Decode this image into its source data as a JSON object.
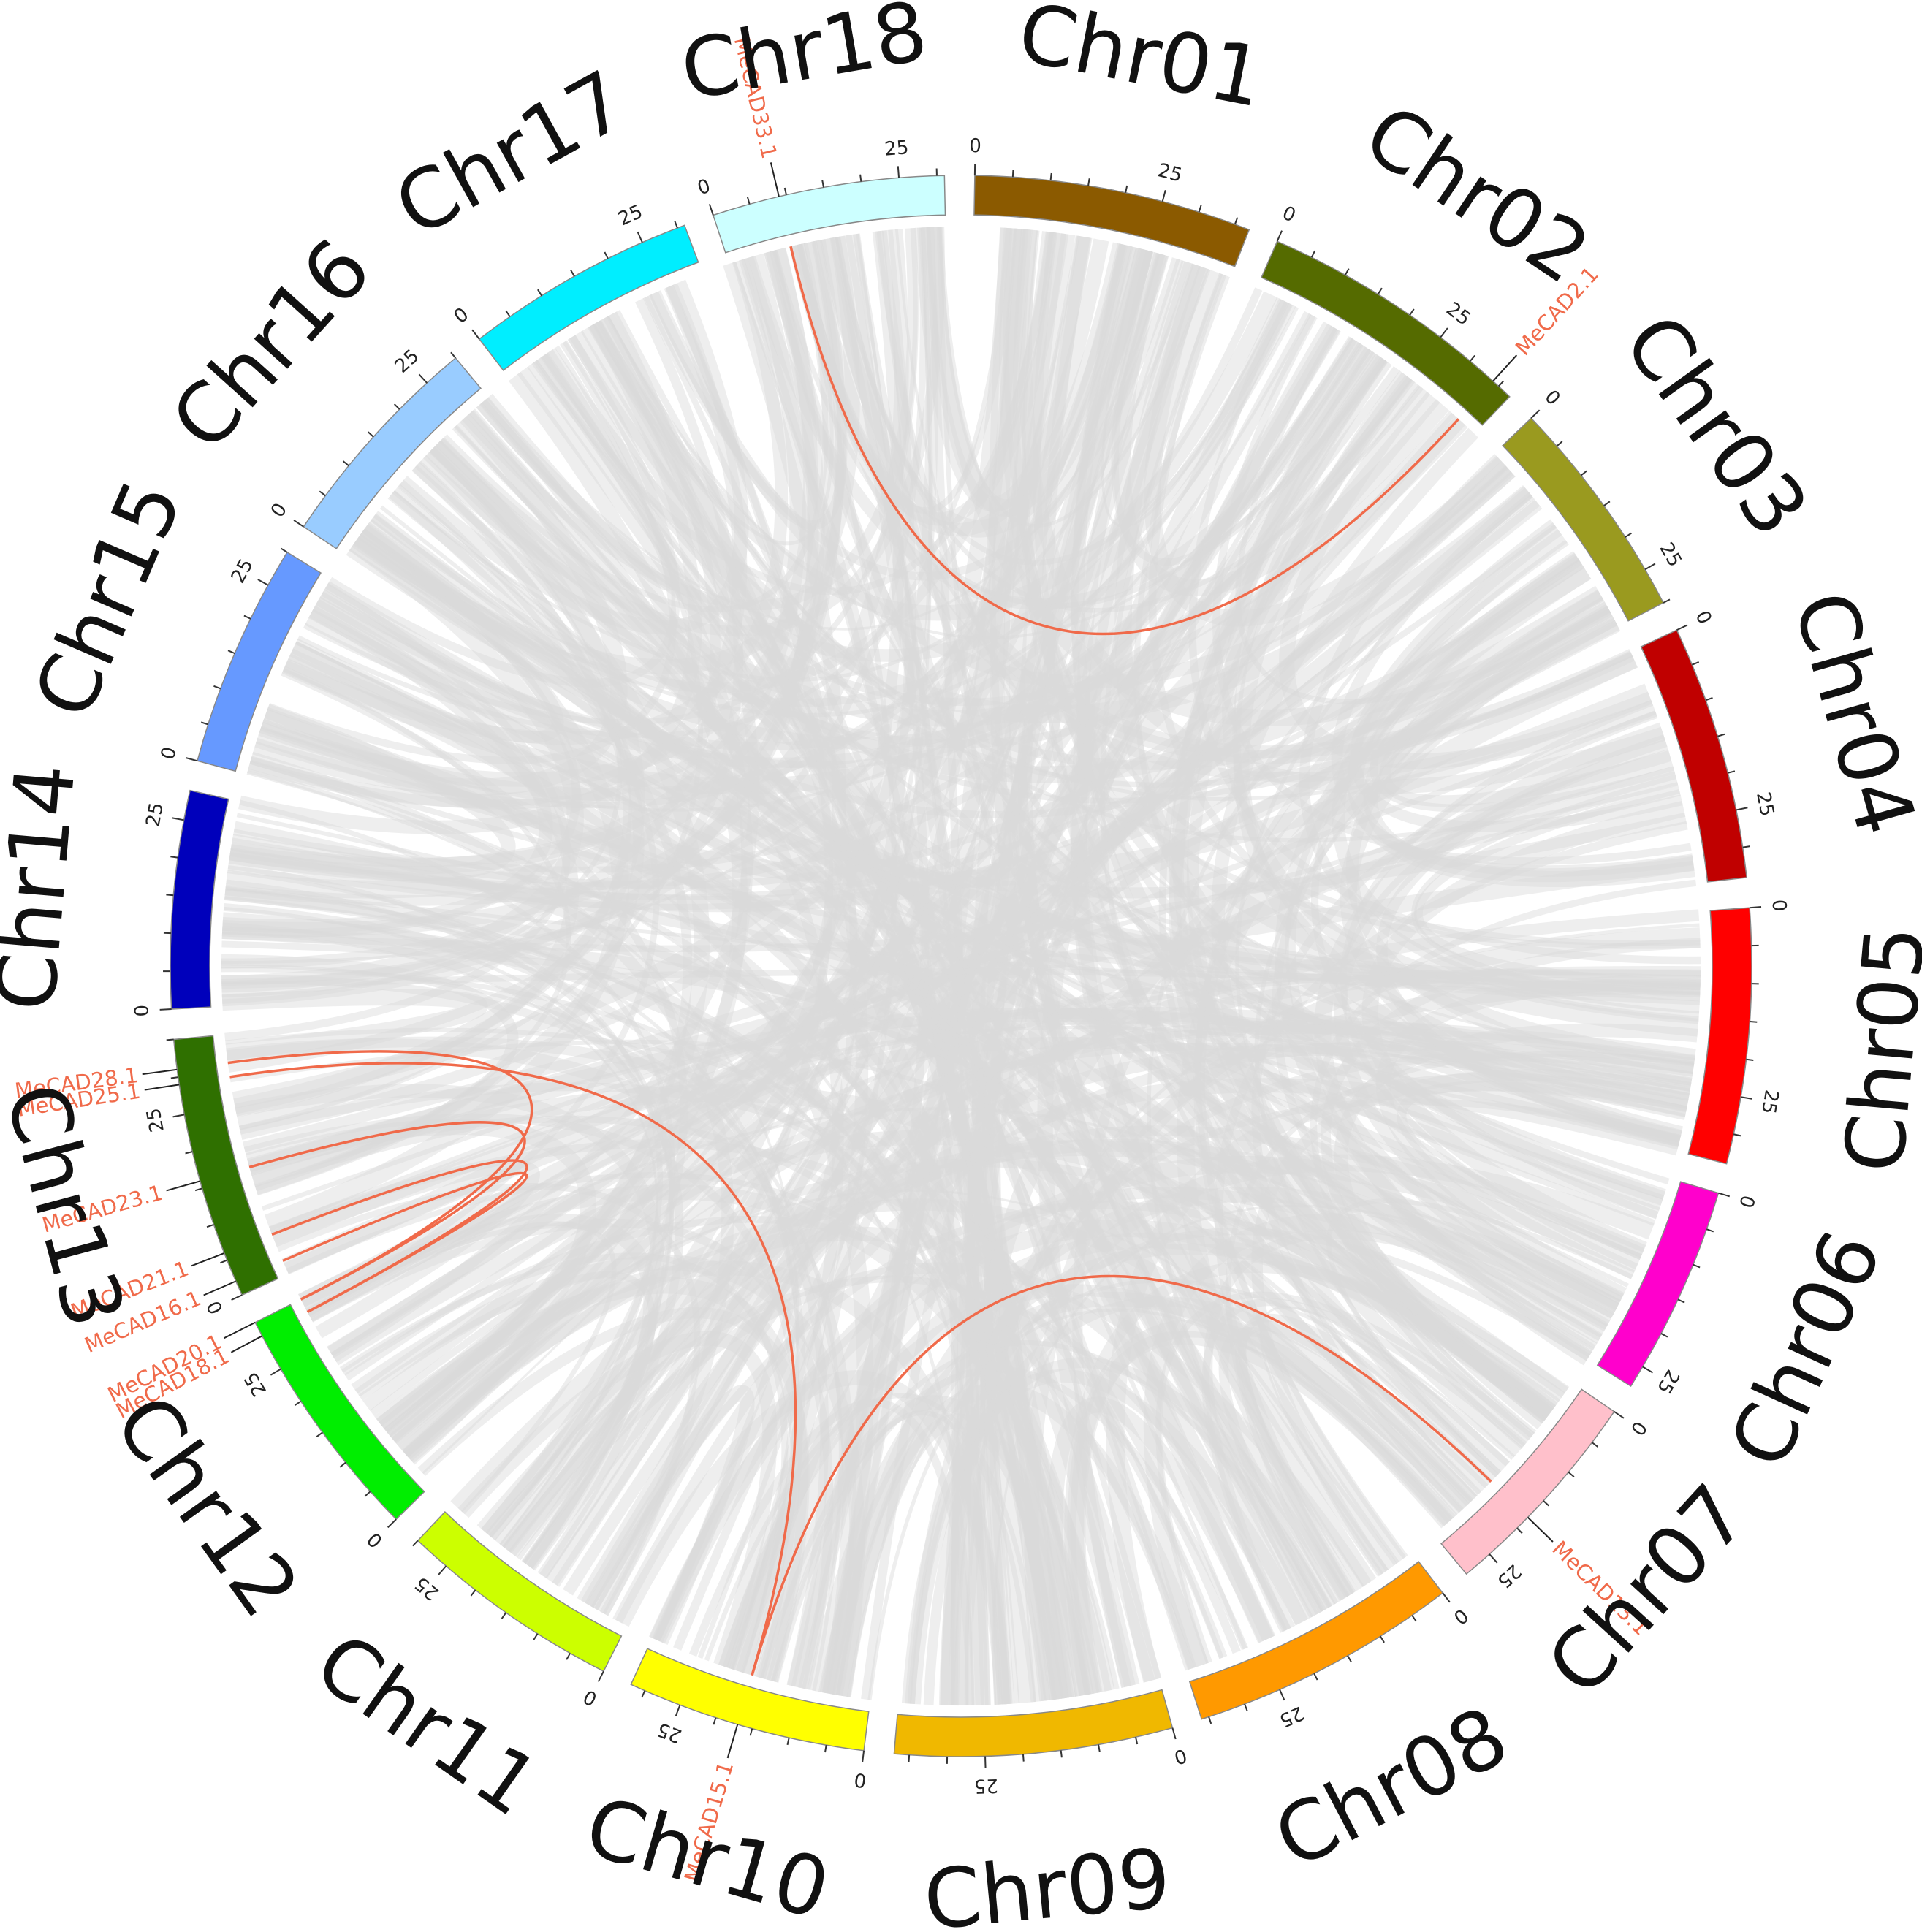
{
  "chart_data": {
    "type": "circos",
    "chromosomes": [
      {
        "name": "Chr01",
        "length": 37,
        "color": "#8B5A00"
      },
      {
        "name": "Chr02",
        "length": 37,
        "color": "#556B00"
      },
      {
        "name": "Chr03",
        "length": 30,
        "color": "#9A9A1F"
      },
      {
        "name": "Chr04",
        "length": 34,
        "color": "#C00000"
      },
      {
        "name": "Chr05",
        "length": 34,
        "color": "#FF0000"
      },
      {
        "name": "Chr06",
        "length": 28,
        "color": "#FF00CC"
      },
      {
        "name": "Chr07",
        "length": 29,
        "color": "#FFC0CB"
      },
      {
        "name": "Chr08",
        "length": 36,
        "color": "#FF9900"
      },
      {
        "name": "Chr09",
        "length": 37,
        "color": "#F0B800"
      },
      {
        "name": "Chr10",
        "length": 32,
        "color": "#FFFF00"
      },
      {
        "name": "Chr11",
        "length": 30,
        "color": "#CCFF00"
      },
      {
        "name": "Chr12",
        "length": 32,
        "color": "#00EE00"
      },
      {
        "name": "Chr13",
        "length": 35,
        "color": "#2F7000"
      },
      {
        "name": "Chr14",
        "length": 29,
        "color": "#0000BB"
      },
      {
        "name": "Chr15",
        "length": 30,
        "color": "#6699FF"
      },
      {
        "name": "Chr16",
        "length": 30,
        "color": "#99CCFF"
      },
      {
        "name": "Chr17",
        "length": 31,
        "color": "#00EEFF"
      },
      {
        "name": "Chr18",
        "length": 31,
        "color": "#CCFFFF"
      }
    ],
    "tick_labels": [
      "0",
      "25"
    ],
    "genes": [
      {
        "name": "MeCAD33.1",
        "chr": "Chr18",
        "pos": 9
      },
      {
        "name": "MeCAD2.1",
        "chr": "Chr02",
        "pos": 34
      },
      {
        "name": "MeCAD13.1",
        "chr": "Chr07",
        "pos": 18
      },
      {
        "name": "MeCAD15.1",
        "chr": "Chr10",
        "pos": 17
      },
      {
        "name": "MeCAD18.1",
        "chr": "Chr12",
        "pos": 30
      },
      {
        "name": "MeCAD20.1",
        "chr": "Chr12",
        "pos": 32
      },
      {
        "name": "MeCAD16.1",
        "chr": "Chr13",
        "pos": 2
      },
      {
        "name": "MeCAD21.1",
        "chr": "Chr13",
        "pos": 6
      },
      {
        "name": "MeCAD23.1",
        "chr": "Chr13",
        "pos": 16
      },
      {
        "name": "MeCAD25.1",
        "chr": "Chr13",
        "pos": 29
      },
      {
        "name": "MeCAD28.1",
        "chr": "Chr13",
        "pos": 31
      }
    ],
    "gene_label_color": "#F06A4A",
    "highlight_link_color": "#F06A4A",
    "background_link_color": "#D9D9D9",
    "highlight_links": [
      {
        "from": "MeCAD33.1",
        "to": "MeCAD2.1"
      },
      {
        "from": "MeCAD13.1",
        "to": "MeCAD15.1"
      },
      {
        "from": "MeCAD21.1",
        "to": "MeCAD18.1"
      },
      {
        "from": "MeCAD23.1",
        "to": "MeCAD20.1"
      },
      {
        "from": "MeCAD25.1",
        "to": "MeCAD15.1"
      },
      {
        "from": "MeCAD28.1",
        "to": "MeCAD20.1"
      },
      {
        "from": "MeCAD16.1",
        "to": "MeCAD18.1"
      }
    ]
  }
}
